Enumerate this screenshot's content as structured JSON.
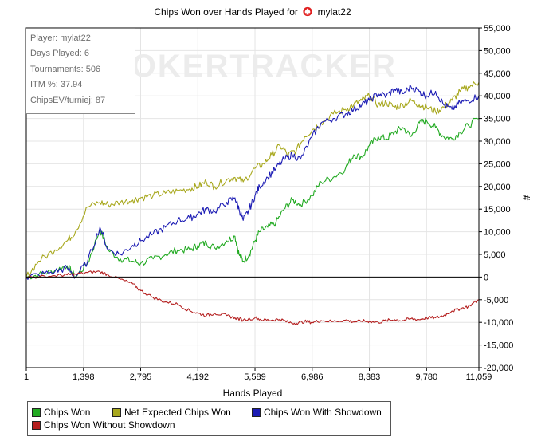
{
  "title": {
    "prefix": "Chips Won over Hands Played for",
    "player": "mylat22",
    "icon": "pokerstars-spade-icon"
  },
  "watermark": "POKERTRACKER",
  "stats_box": [
    "Player: mylat22",
    "Days Played: 6",
    "Tournaments: 506",
    "ITM %: 37.94",
    "ChipsEV/turniej: 87"
  ],
  "colors": {
    "chips_won": "#22aa22",
    "net_expected": "#a8a81e",
    "with_showdown": "#1c1cb4",
    "without_showdown": "#b41e1e",
    "zero_line": "#000000",
    "grid": "#e4e4e4"
  },
  "chart_data": {
    "type": "line",
    "xlabel": "Hands Played",
    "ylabel": "#",
    "xlim": [
      1,
      11059
    ],
    "ylim": [
      -20000,
      55000
    ],
    "x_ticks": [
      "1",
      "1,398",
      "2,795",
      "4,192",
      "5,589",
      "6,986",
      "8,383",
      "9,780",
      "11,059"
    ],
    "y_ticks": [
      "55,000",
      "50,000",
      "45,000",
      "40,000",
      "35,000",
      "30,000",
      "25,000",
      "20,000",
      "15,000",
      "10,000",
      "5,000",
      "0",
      "-5,000",
      "-10,000",
      "-15,000",
      "-20,000"
    ],
    "y_axis_side": "right",
    "grid": true,
    "legend_position": "bottom",
    "series": [
      {
        "name": "Chips Won",
        "x": [
          1,
          300,
          700,
          1000,
          1200,
          1500,
          1800,
          2000,
          2300,
          2600,
          2795,
          3100,
          3400,
          3700,
          4000,
          4192,
          4400,
          4600,
          4900,
          5100,
          5200,
          5300,
          5450,
          5589,
          5700,
          5900,
          6100,
          6300,
          6500,
          6700,
          6986,
          7200,
          7500,
          7800,
          8000,
          8200,
          8383,
          8600,
          8800,
          9000,
          9200,
          9400,
          9600,
          9780,
          10000,
          10200,
          10400,
          10600,
          10800,
          11059
        ],
        "y": [
          0,
          500,
          1500,
          2500,
          0,
          3000,
          10500,
          6000,
          4000,
          3500,
          3000,
          4000,
          5000,
          6000,
          6000,
          7000,
          7500,
          6500,
          8000,
          9000,
          5000,
          3500,
          5000,
          8000,
          10000,
          11000,
          12000,
          15000,
          17000,
          16000,
          18000,
          21000,
          22000,
          24000,
          27000,
          26500,
          29000,
          31000,
          30500,
          32000,
          33000,
          31000,
          34000,
          34500,
          33000,
          31000,
          30500,
          32000,
          33500,
          35000
        ]
      },
      {
        "name": "Net Expected Chips Won",
        "x": [
          1,
          300,
          700,
          1000,
          1200,
          1500,
          1800,
          2000,
          2300,
          2600,
          2795,
          3100,
          3400,
          3700,
          4000,
          4192,
          4400,
          4600,
          4900,
          5100,
          5300,
          5589,
          5800,
          6000,
          6200,
          6400,
          6600,
          6800,
          6986,
          7200,
          7500,
          7800,
          8000,
          8200,
          8383,
          8600,
          8800,
          9000,
          9200,
          9400,
          9600,
          9780,
          10000,
          10200,
          10400,
          10600,
          10800,
          11059
        ],
        "y": [
          0,
          3500,
          6000,
          8000,
          10000,
          15500,
          16500,
          16000,
          16500,
          17000,
          17500,
          18000,
          18500,
          19000,
          19500,
          20000,
          21000,
          20000,
          21500,
          22000,
          21000,
          24000,
          25000,
          27000,
          29000,
          27000,
          28000,
          31000,
          32500,
          34000,
          36000,
          37000,
          38000,
          39000,
          40000,
          38000,
          38500,
          37500,
          38000,
          39000,
          38000,
          37500,
          36500,
          37500,
          39000,
          41000,
          42000,
          43000
        ]
      },
      {
        "name": "Chips Won With Showdown",
        "x": [
          1,
          300,
          700,
          1000,
          1200,
          1500,
          1800,
          2000,
          2300,
          2600,
          2795,
          3100,
          3400,
          3700,
          4000,
          4192,
          4400,
          4600,
          4900,
          5100,
          5200,
          5300,
          5450,
          5589,
          5700,
          5900,
          6100,
          6300,
          6500,
          6700,
          6986,
          7200,
          7500,
          7800,
          8000,
          8200,
          8383,
          8600,
          8800,
          9000,
          9200,
          9400,
          9600,
          9780,
          10000,
          10200,
          10400,
          10600,
          10800,
          11059
        ],
        "y": [
          0,
          500,
          1200,
          2000,
          0,
          3500,
          11000,
          6000,
          5000,
          7000,
          8000,
          9500,
          11000,
          12500,
          13000,
          14000,
          15000,
          14500,
          16500,
          17500,
          15000,
          12500,
          15000,
          18000,
          20000,
          22000,
          24000,
          26000,
          27000,
          26000,
          31000,
          34000,
          35000,
          36000,
          37000,
          38000,
          39000,
          40500,
          40000,
          41500,
          40500,
          42000,
          41000,
          40000,
          41000,
          38000,
          37000,
          38500,
          39000,
          40000
        ]
      },
      {
        "name": "Chips Won Without Showdown",
        "x": [
          1,
          300,
          700,
          1000,
          1200,
          1500,
          1800,
          2000,
          2300,
          2600,
          2795,
          3100,
          3400,
          3700,
          4000,
          4192,
          4400,
          4600,
          4900,
          5100,
          5300,
          5589,
          5800,
          6000,
          6200,
          6400,
          6600,
          6800,
          6986,
          7200,
          7500,
          7800,
          8000,
          8200,
          8383,
          8600,
          8800,
          9000,
          9200,
          9400,
          9600,
          9780,
          10000,
          10200,
          10400,
          10600,
          10800,
          11059
        ],
        "y": [
          0,
          0,
          300,
          500,
          600,
          1000,
          1200,
          500,
          -500,
          -1500,
          -3000,
          -4500,
          -5500,
          -6000,
          -7500,
          -8000,
          -8500,
          -8000,
          -8500,
          -9000,
          -9500,
          -9000,
          -9500,
          -9500,
          -9300,
          -10000,
          -10200,
          -9800,
          -10000,
          -9600,
          -9800,
          -9500,
          -9900,
          -9700,
          -9800,
          -10000,
          -9600,
          -9400,
          -9600,
          -9200,
          -9400,
          -9000,
          -9000,
          -8500,
          -7500,
          -7000,
          -6500,
          -5000
        ]
      }
    ]
  }
}
